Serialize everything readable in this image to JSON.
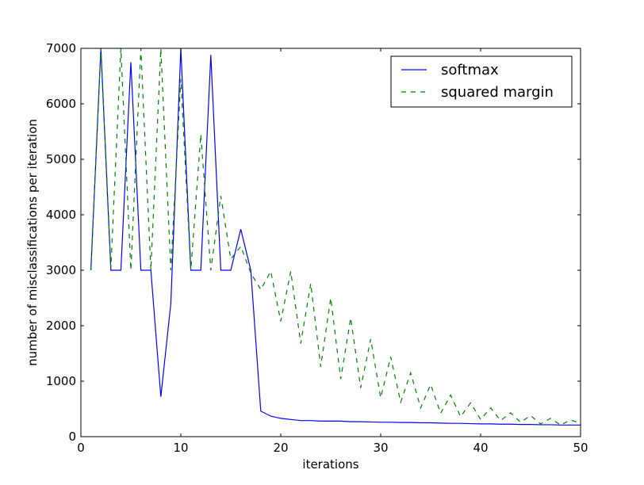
{
  "chart_data": {
    "type": "line",
    "title": "",
    "xlabel": "iterations",
    "ylabel": "number of misclassifications per iteration",
    "xlim": [
      0,
      50
    ],
    "ylim": [
      0,
      7000
    ],
    "xticks": [
      0,
      10,
      20,
      30,
      40,
      50
    ],
    "yticks": [
      0,
      1000,
      2000,
      3000,
      4000,
      5000,
      6000,
      7000
    ],
    "grid": false,
    "legend_position": "top-right",
    "series": [
      {
        "name": "softmax",
        "color": "#0000ff",
        "style": "solid",
        "x": [
          1,
          2,
          3,
          4,
          5,
          6,
          7,
          8,
          9,
          10,
          11,
          12,
          13,
          14,
          15,
          16,
          17,
          18,
          19,
          20,
          21,
          22,
          23,
          24,
          25,
          26,
          27,
          28,
          29,
          30,
          31,
          32,
          33,
          34,
          35,
          36,
          37,
          38,
          39,
          40,
          41,
          42,
          43,
          44,
          45,
          46,
          47,
          48,
          49,
          50
        ],
        "values": [
          3000,
          7000,
          3000,
          3000,
          6750,
          3000,
          3000,
          720,
          2400,
          7000,
          3000,
          3000,
          6880,
          3000,
          3000,
          3740,
          3000,
          460,
          370,
          330,
          310,
          290,
          290,
          280,
          280,
          280,
          270,
          270,
          265,
          260,
          260,
          255,
          255,
          250,
          250,
          245,
          240,
          240,
          235,
          230,
          230,
          225,
          225,
          220,
          220,
          215,
          215,
          210,
          210,
          210
        ]
      },
      {
        "name": "squared margin",
        "color": "#008000",
        "style": "dashed",
        "x": [
          1,
          2,
          3,
          4,
          5,
          6,
          7,
          8,
          9,
          10,
          11,
          12,
          13,
          14,
          15,
          16,
          17,
          18,
          19,
          20,
          21,
          22,
          23,
          24,
          25,
          26,
          27,
          28,
          29,
          30,
          31,
          32,
          33,
          34,
          35,
          36,
          37,
          38,
          39,
          40,
          41,
          42,
          43,
          44,
          45,
          46,
          47,
          48,
          49,
          50
        ],
        "values": [
          3000,
          7000,
          3050,
          7000,
          3000,
          7000,
          3000,
          7000,
          3000,
          6450,
          3000,
          5450,
          3000,
          4340,
          3200,
          3430,
          2950,
          2650,
          2980,
          2080,
          2980,
          1680,
          2760,
          1260,
          2500,
          1040,
          2140,
          880,
          1760,
          700,
          1440,
          620,
          1150,
          520,
          940,
          420,
          750,
          360,
          610,
          310,
          520,
          290,
          430,
          260,
          380,
          230,
          330,
          210,
          300,
          240
        ]
      }
    ]
  }
}
